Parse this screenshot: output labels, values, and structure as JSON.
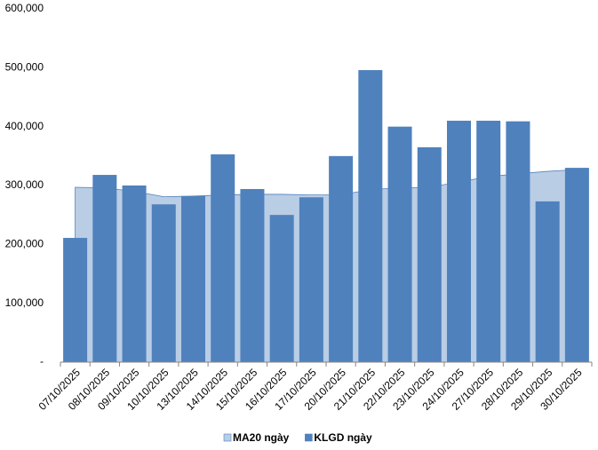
{
  "chart_data": {
    "type": "bar",
    "categories": [
      "07/10/2025",
      "08/10/2025",
      "09/10/2025",
      "10/10/2025",
      "13/10/2025",
      "14/10/2025",
      "15/10/2025",
      "16/10/2025",
      "17/10/2025",
      "20/10/2025",
      "21/10/2025",
      "22/10/2025",
      "23/10/2025",
      "24/10/2025",
      "27/10/2025",
      "28/10/2025",
      "29/10/2025",
      "30/10/2025"
    ],
    "series": [
      {
        "name": "MA20 ngày",
        "type": "area",
        "color": "#b9cde5",
        "values": [
          297000,
          296000,
          290000,
          281000,
          282000,
          284000,
          285000,
          285000,
          284000,
          284000,
          293000,
          296000,
          297000,
          306000,
          315000,
          320000,
          324000,
          327000
        ]
      },
      {
        "name": "KLGD ngày",
        "type": "bar",
        "color": "#4f81bd",
        "values": [
          211000,
          318000,
          300000,
          268000,
          282000,
          353000,
          294000,
          250000,
          280000,
          350000,
          496000,
          400000,
          365000,
          410000,
          410000,
          409000,
          273000,
          330000
        ]
      }
    ],
    "ylim": [
      0,
      600000
    ],
    "yticks": [
      {
        "value": 0,
        "label": "-"
      },
      {
        "value": 100000,
        "label": "100,000"
      },
      {
        "value": 200000,
        "label": "200,000"
      },
      {
        "value": 300000,
        "label": "300,000"
      },
      {
        "value": 400000,
        "label": "400,000"
      },
      {
        "value": 500000,
        "label": "500,000"
      },
      {
        "value": 600000,
        "label": "600,000"
      }
    ],
    "legend": "bottom"
  }
}
